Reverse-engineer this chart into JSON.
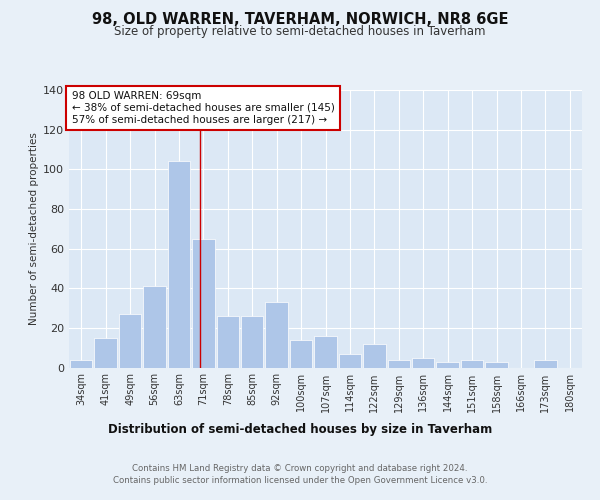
{
  "title1": "98, OLD WARREN, TAVERHAM, NORWICH, NR8 6GE",
  "title2": "Size of property relative to semi-detached houses in Taverham",
  "xlabel": "Distribution of semi-detached houses by size in Taverham",
  "ylabel": "Number of semi-detached properties",
  "categories": [
    "34sqm",
    "41sqm",
    "49sqm",
    "56sqm",
    "63sqm",
    "71sqm",
    "78sqm",
    "85sqm",
    "92sqm",
    "100sqm",
    "107sqm",
    "114sqm",
    "122sqm",
    "129sqm",
    "136sqm",
    "144sqm",
    "151sqm",
    "158sqm",
    "166sqm",
    "173sqm",
    "180sqm"
  ],
  "values": [
    4,
    15,
    27,
    41,
    104,
    65,
    26,
    26,
    33,
    14,
    16,
    7,
    12,
    4,
    5,
    3,
    4,
    3,
    0,
    4,
    0
  ],
  "bar_color": "#aec6e8",
  "bar_edge_color": "#ffffff",
  "background_color": "#e8f0f8",
  "plot_bg_color": "#dce8f5",
  "grid_color": "#ffffff",
  "vline_x": 4.85,
  "vline_color": "#cc0000",
  "annotation_text": "98 OLD WARREN: 69sqm\n← 38% of semi-detached houses are smaller (145)\n57% of semi-detached houses are larger (217) →",
  "annotation_box_color": "#ffffff",
  "annotation_box_edge": "#cc0000",
  "footer1": "Contains HM Land Registry data © Crown copyright and database right 2024.",
  "footer2": "Contains public sector information licensed under the Open Government Licence v3.0.",
  "ylim": [
    0,
    140
  ],
  "yticks": [
    0,
    20,
    40,
    60,
    80,
    100,
    120,
    140
  ]
}
